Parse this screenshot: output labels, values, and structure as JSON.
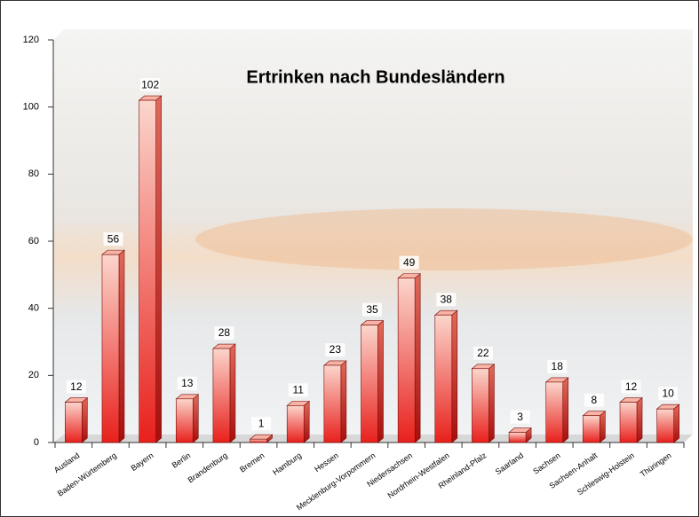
{
  "chart_data": {
    "type": "bar",
    "title": "Ertrinken nach Bundesländern",
    "categories": [
      "Ausland",
      "Baden-Würtemberg",
      "Bayern",
      "Berlin",
      "Brandenburg",
      "Bremen",
      "Hamburg",
      "Hessen",
      "Mecklenburg-Vorpommern",
      "Niedersachsen",
      "Nordrhein-Westfalen",
      "Rheinland-Pfalz",
      "Saarland",
      "Sachsen",
      "Sachsen-Anhalt",
      "Schleswig-Holstein",
      "Thüringen"
    ],
    "values": [
      12,
      56,
      102,
      13,
      28,
      1,
      11,
      23,
      35,
      49,
      38,
      22,
      3,
      18,
      8,
      12,
      10
    ],
    "color": "#e8201c",
    "ylim": [
      0,
      120
    ],
    "yticks": [
      0,
      20,
      40,
      60,
      80,
      100,
      120
    ]
  }
}
